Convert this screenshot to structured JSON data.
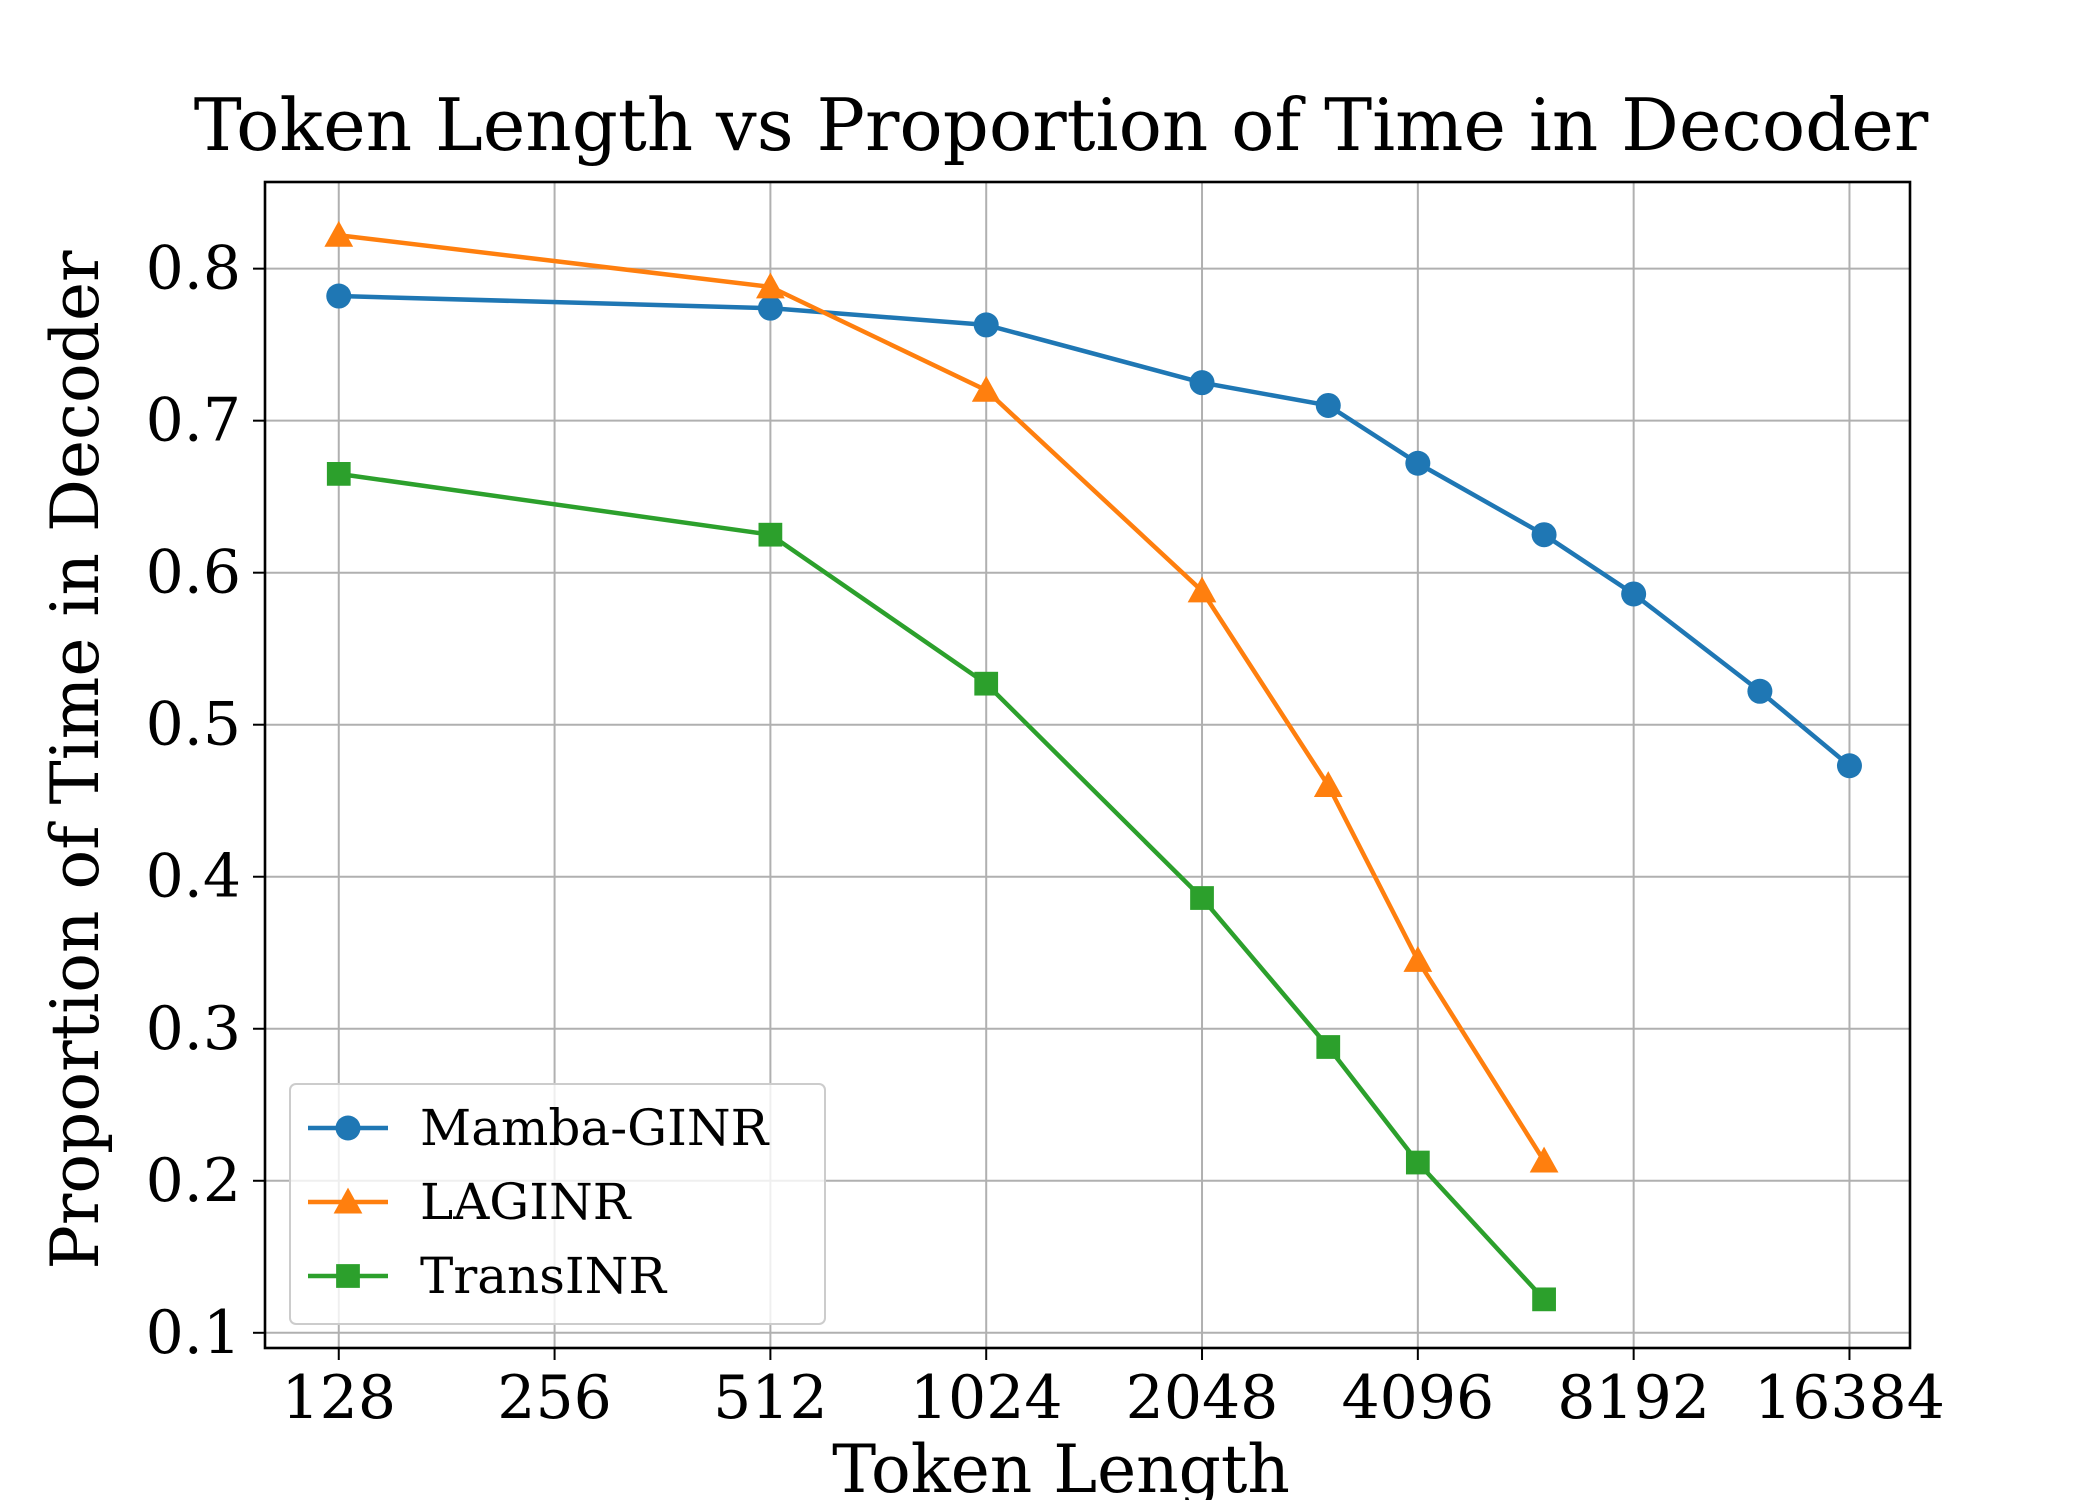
{
  "chart_data": {
    "type": "line",
    "title": "Token Length vs Proportion of Time in Decoder",
    "xlabel": "Token Length",
    "ylabel": "Proportion of Time in Decoder",
    "x_scale": "log2",
    "xticks": [
      128,
      256,
      512,
      1024,
      2048,
      4096,
      8192,
      16384
    ],
    "xtick_labels": [
      "128",
      "256",
      "512",
      "1024",
      "2048",
      "4096",
      "8192",
      "16384"
    ],
    "yticks": [
      0.1,
      0.2,
      0.3,
      0.4,
      0.5,
      0.6,
      0.7,
      0.8
    ],
    "ytick_labels": [
      "0.1",
      "0.2",
      "0.3",
      "0.4",
      "0.5",
      "0.6",
      "0.7",
      "0.8"
    ],
    "xlim": [
      101,
      19900
    ],
    "ylim": [
      0.09,
      0.857
    ],
    "grid": true,
    "legend_position": "lower-left",
    "series": [
      {
        "name": "Mamba-GINR",
        "color": "#1f77b4",
        "marker": "circle",
        "x": [
          128,
          512,
          1024,
          2048,
          3072,
          4096,
          6144,
          8192,
          12288,
          16384
        ],
        "y": [
          0.782,
          0.774,
          0.763,
          0.725,
          0.71,
          0.672,
          0.625,
          0.586,
          0.522,
          0.473
        ]
      },
      {
        "name": "LAGINR",
        "color": "#ff7f0e",
        "marker": "triangle",
        "x": [
          128,
          512,
          1024,
          2048,
          3072,
          4096,
          6144
        ],
        "y": [
          0.822,
          0.788,
          0.72,
          0.588,
          0.46,
          0.345,
          0.213
        ]
      },
      {
        "name": "TransINR",
        "color": "#2ca02c",
        "marker": "square",
        "x": [
          128,
          512,
          1024,
          2048,
          3072,
          4096,
          6144
        ],
        "y": [
          0.665,
          0.625,
          0.527,
          0.386,
          0.288,
          0.212,
          0.122
        ]
      }
    ]
  }
}
